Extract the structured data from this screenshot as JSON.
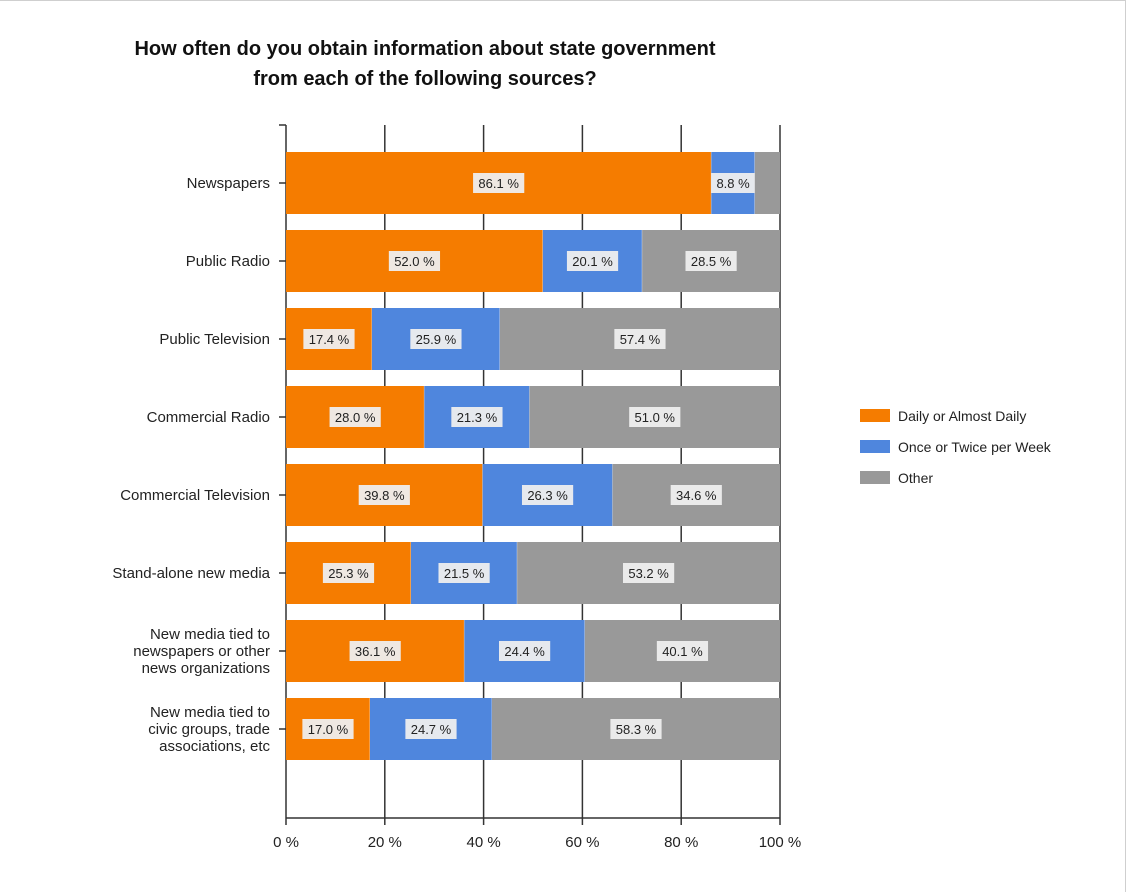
{
  "chart_data": {
    "type": "bar",
    "orientation": "horizontal",
    "stacked": true,
    "title": [
      "How often do you obtain information about state government",
      "from each of the following sources?"
    ],
    "categories": [
      [
        "Newspapers"
      ],
      [
        "Public Radio"
      ],
      [
        "Public Television"
      ],
      [
        "Commercial Radio"
      ],
      [
        "Commercial Television"
      ],
      [
        "Stand-alone new media"
      ],
      [
        "New media tied to",
        "newspapers or other",
        "news organizations"
      ],
      [
        "New media tied to",
        "civic groups, trade",
        "associations, etc"
      ]
    ],
    "series": [
      {
        "name": "Daily or Almost Daily",
        "color": "#f57c00",
        "values": [
          86.1,
          52.0,
          17.4,
          28.0,
          39.8,
          25.3,
          36.1,
          17.0
        ]
      },
      {
        "name": "Once or Twice per Week",
        "color": "#4f86dd",
        "values": [
          8.8,
          20.1,
          25.9,
          21.3,
          26.3,
          21.5,
          24.4,
          24.7
        ]
      },
      {
        "name": "Other",
        "color": "#999999",
        "values": [
          5.1,
          28.5,
          57.4,
          51.0,
          34.6,
          53.2,
          40.1,
          58.3
        ]
      }
    ],
    "labels_shown": [
      [
        true,
        true,
        false
      ],
      [
        true,
        true,
        true
      ],
      [
        true,
        true,
        true
      ],
      [
        true,
        true,
        true
      ],
      [
        true,
        true,
        true
      ],
      [
        true,
        true,
        true
      ],
      [
        true,
        true,
        true
      ],
      [
        true,
        true,
        true
      ]
    ],
    "value_suffix": " %",
    "xlim": [
      0,
      100
    ],
    "xticks": [
      "0 %",
      "20 %",
      "40 %",
      "60 %",
      "80 %",
      "100 %"
    ],
    "grid": true,
    "legend_position": "right"
  }
}
